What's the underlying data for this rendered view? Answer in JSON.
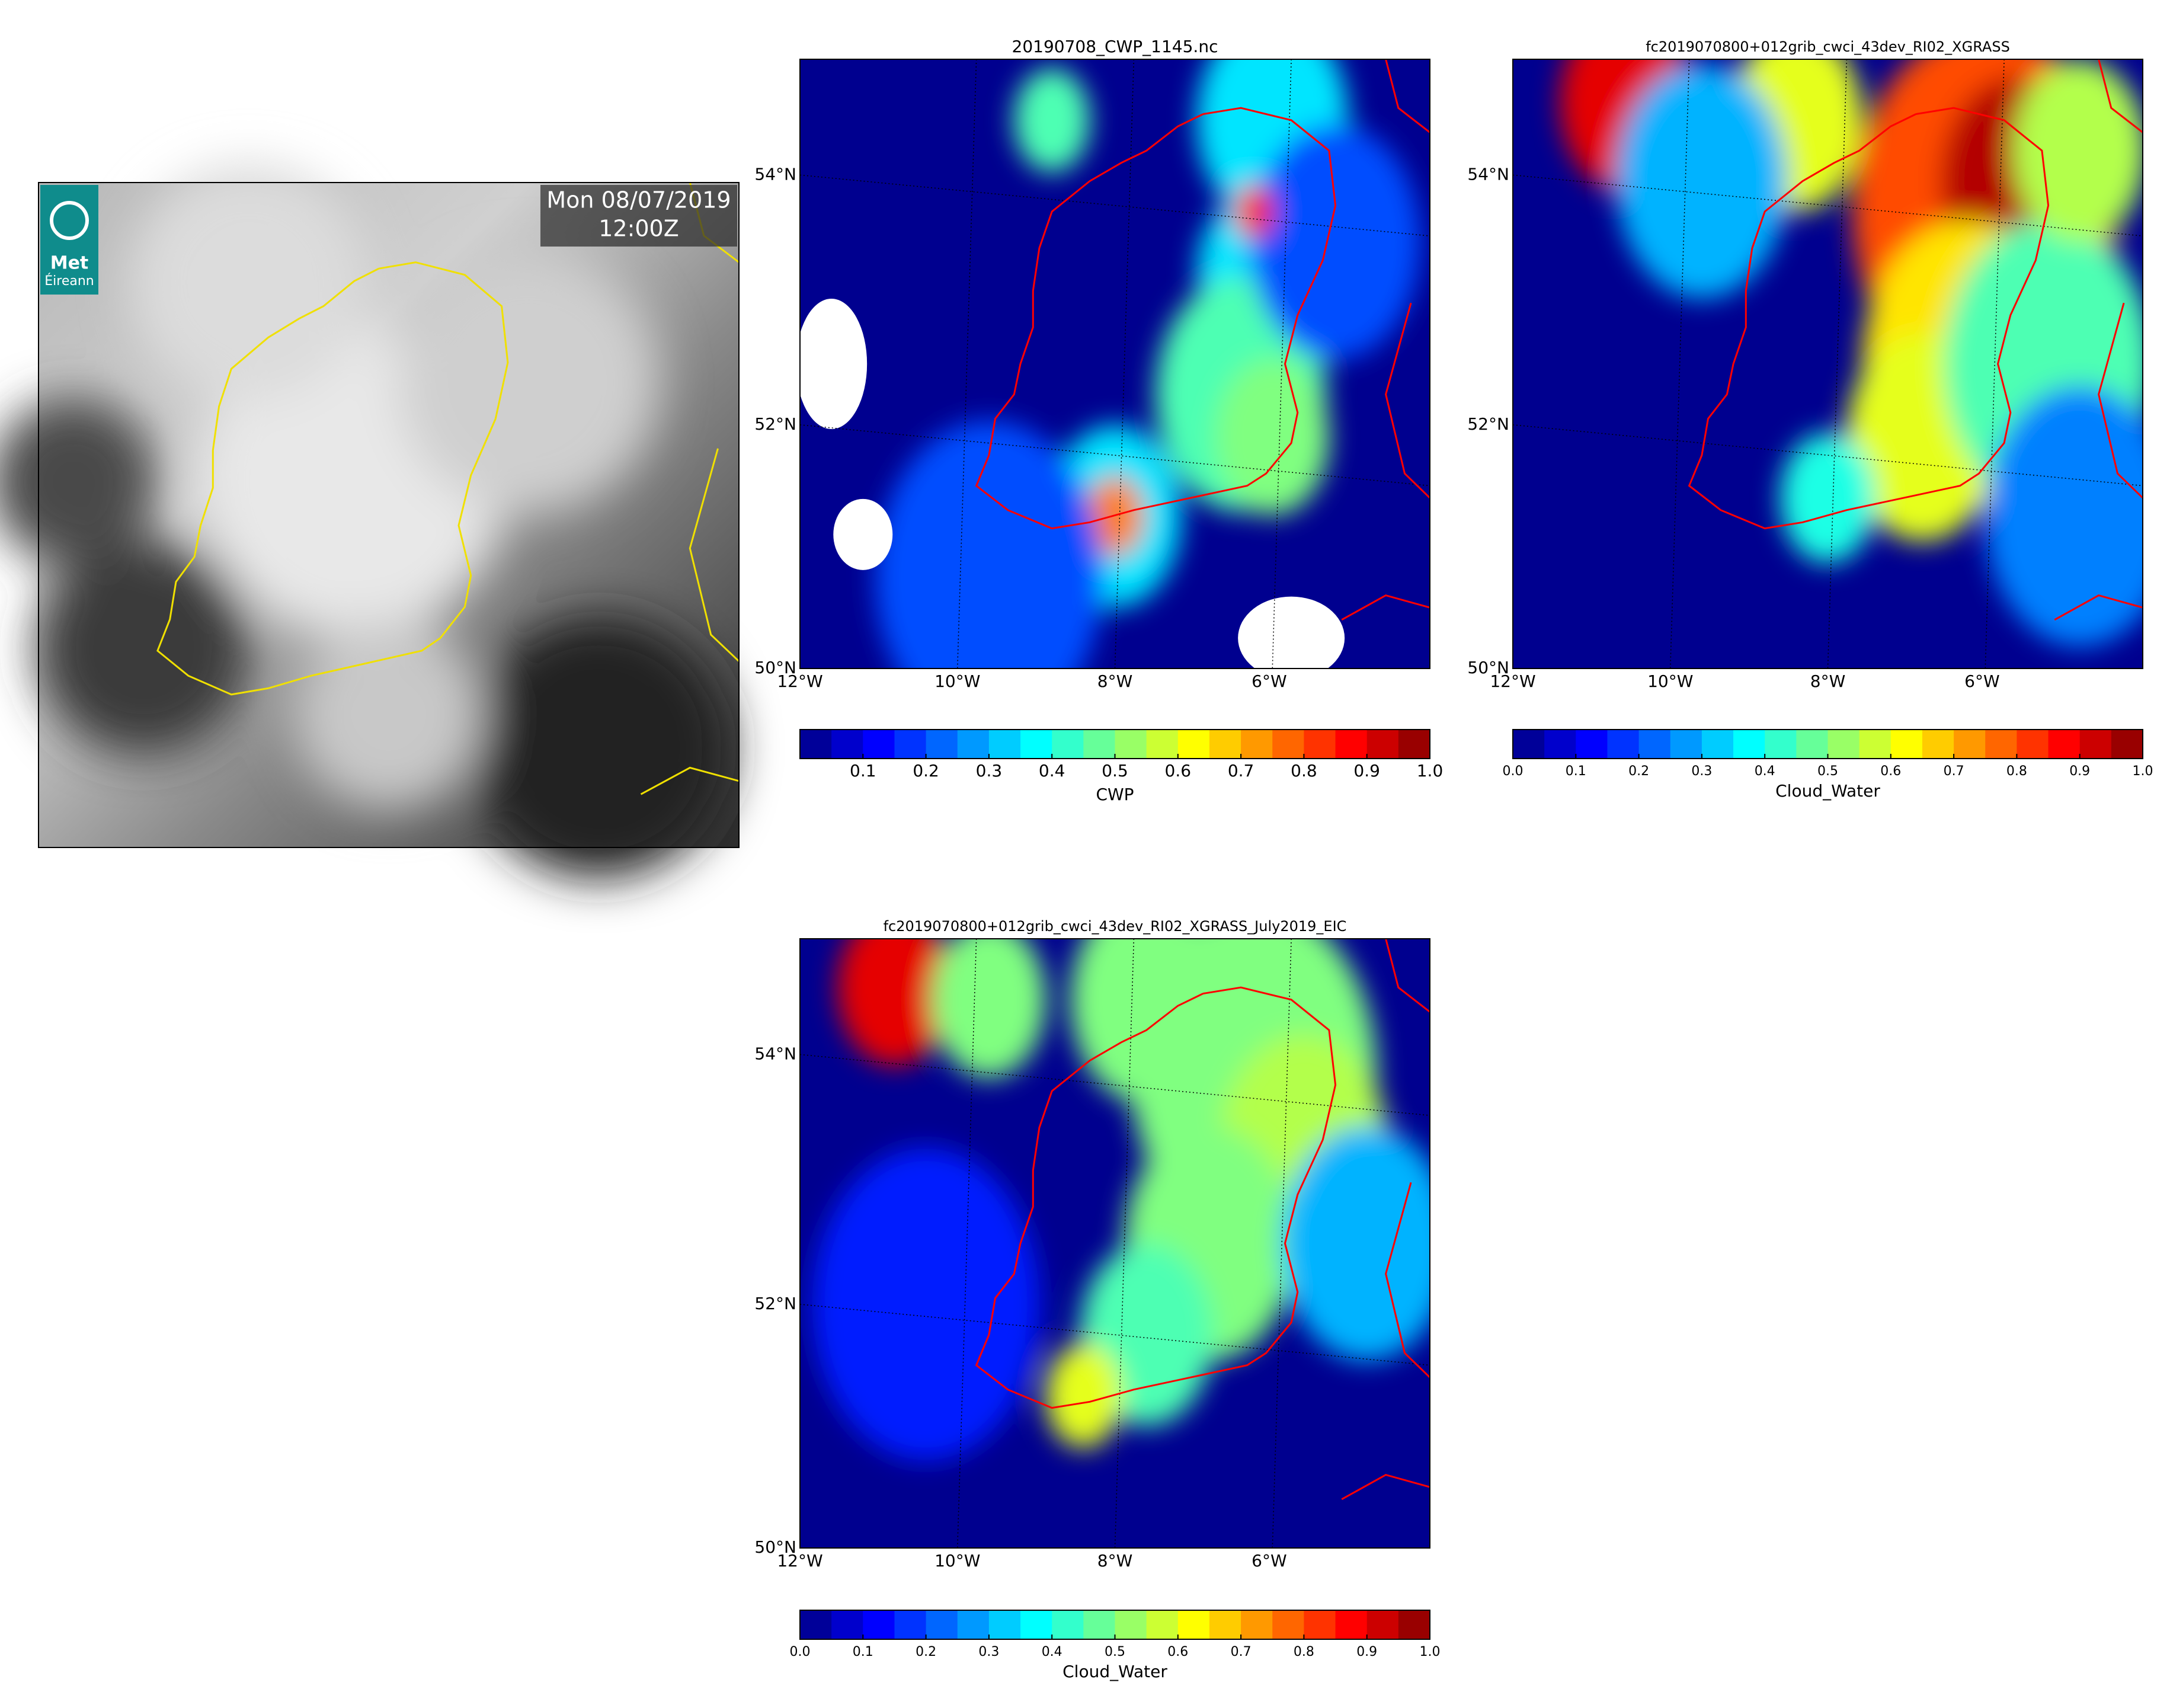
{
  "satellite": {
    "date": "Mon 08/07/2019",
    "time": "12:00Z",
    "logo": [
      "Met",
      "Éireann"
    ]
  },
  "panels": [
    {
      "title": "20190708_CWP_1145.nc",
      "lat_labels": [
        "54°N",
        "52°N",
        "50°N"
      ],
      "lon_labels": [
        "12°W",
        "10°W",
        "8°W",
        "6°W"
      ],
      "colorbar": {
        "label": "CWP",
        "ticks": [
          "0.1",
          "0.2",
          "0.3",
          "0.4",
          "0.5",
          "0.6",
          "0.7",
          "0.8",
          "0.9",
          "1.0"
        ]
      }
    },
    {
      "title": "fc2019070800+012grib_cwci_43dev_RI02_XGRASS",
      "lat_labels": [
        "54°N",
        "52°N",
        "50°N"
      ],
      "lon_labels": [
        "12°W",
        "10°W",
        "8°W",
        "6°W"
      ],
      "colorbar": {
        "label": "Cloud_Water",
        "ticks": [
          "0.0",
          "0.1",
          "0.2",
          "0.3",
          "0.4",
          "0.5",
          "0.6",
          "0.7",
          "0.8",
          "0.9",
          "1.0"
        ]
      }
    },
    {
      "title": "fc2019070800+012grib_cwci_43dev_RI02_XGRASS_July2019_EIC",
      "lat_labels": [
        "54°N",
        "52°N",
        "50°N"
      ],
      "lon_labels": [
        "12°W",
        "10°W",
        "8°W",
        "6°W"
      ],
      "colorbar": {
        "label": "Cloud_Water",
        "ticks": [
          "0.0",
          "0.1",
          "0.2",
          "0.3",
          "0.4",
          "0.5",
          "0.6",
          "0.7",
          "0.8",
          "0.9",
          "1.0"
        ]
      }
    }
  ]
}
